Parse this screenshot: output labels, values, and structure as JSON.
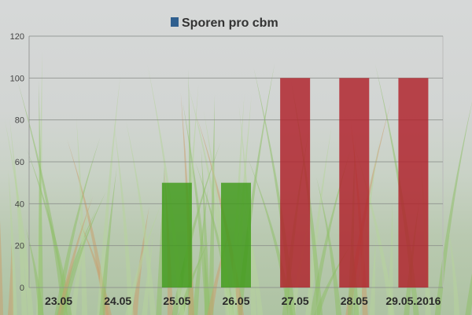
{
  "chart_data": {
    "type": "bar",
    "title": "",
    "legend": {
      "entries": [
        "Sporen pro cbm"
      ],
      "placement": "top",
      "swatch_color": "#2f5f8f"
    },
    "categories": [
      "23.05",
      "24.05",
      "25.05",
      "26.05",
      "27.05",
      "28.05",
      "29.05.2016"
    ],
    "series": [
      {
        "name": "Sporen pro cbm",
        "values": [
          0,
          0,
          50,
          50,
          100,
          100,
          100
        ]
      }
    ],
    "bar_colors": [
      "#3f9a1a",
      "#3f9a1a",
      "#3f9a1a",
      "#3f9a1a",
      "#b0202a",
      "#b0202a",
      "#b0202a"
    ],
    "ylim": [
      0,
      120
    ],
    "yticks": [
      0,
      20,
      40,
      60,
      80,
      100,
      120
    ],
    "grid": true,
    "xlabel": "",
    "ylabel": ""
  }
}
